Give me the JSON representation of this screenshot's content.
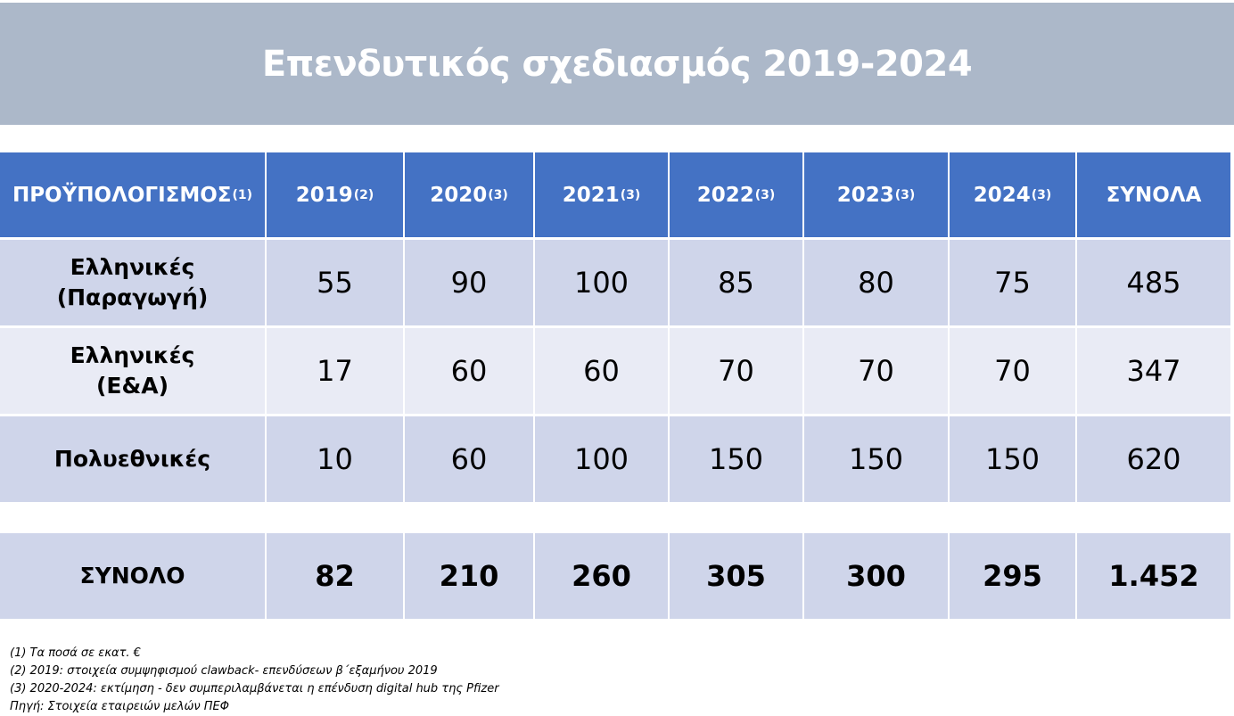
{
  "title": "Επενδυτικός σχεδιασμός 2019-2024",
  "header": {
    "budget_label": "ΠΡΟΫΠΟΛΟΓΙΣΜΟΣ",
    "budget_note": "(1)",
    "years": [
      {
        "year": "2019",
        "note": "(2)"
      },
      {
        "year": "2020",
        "note": "(3)"
      },
      {
        "year": "2021",
        "note": "(3)"
      },
      {
        "year": "2022",
        "note": "(3)"
      },
      {
        "year": "2023",
        "note": "(3)"
      },
      {
        "year": "2024",
        "note": "(3)"
      }
    ],
    "totals_label": "ΣΥΝΟΛΑ"
  },
  "rows": [
    {
      "label_line1": "Ελληνικές",
      "label_line2": "(Παραγωγή)",
      "values": [
        "55",
        "90",
        "100",
        "85",
        "80",
        "75"
      ],
      "total": "485"
    },
    {
      "label_line1": "Ελληνικές",
      "label_line2": "(Ε&Α)",
      "values": [
        "17",
        "60",
        "60",
        "70",
        "70",
        "70"
      ],
      "total": "347"
    },
    {
      "label_line1": "Πολυεθνικές",
      "label_line2": "",
      "values": [
        "10",
        "60",
        "100",
        "150",
        "150",
        "150"
      ],
      "total": "620"
    }
  ],
  "total_row": {
    "label": "ΣΥΝΟΛΟ",
    "values": [
      "82",
      "210",
      "260",
      "305",
      "300",
      "295"
    ],
    "total": "1.452"
  },
  "footnotes": [
    "(1) Τα ποσά σε εκατ. €",
    "(2) 2019: στοιχεία συμψηφισμού clawback- επενδύσεων β΄εξαμήνου 2019",
    "(3) 2020-2024: εκτίμηση - δεν συμπεριλαμβάνεται η επένδυση digital hub της Pfizer",
    "Πηγή: Στοιχεία εταιρειών μελών ΠΕΦ"
  ],
  "colors": {
    "title_band": "#acb8c9",
    "header": "#4472c4",
    "row_dark": "#cfd5ea",
    "row_light": "#e9ebf5"
  }
}
